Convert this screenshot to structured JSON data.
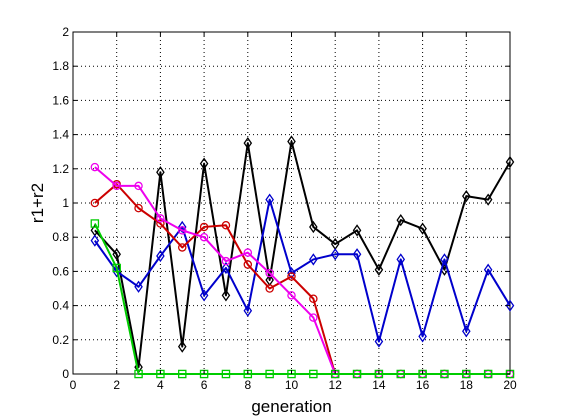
{
  "chart_data": {
    "type": "line",
    "title": "",
    "xlabel": "generation",
    "ylabel": "r1+r2",
    "xlim": [
      0,
      20
    ],
    "ylim": [
      0,
      2
    ],
    "xticks": [
      0,
      2,
      4,
      6,
      8,
      10,
      12,
      14,
      16,
      18,
      20
    ],
    "yticks": [
      0,
      0.2,
      0.4,
      0.6,
      0.8,
      1,
      1.2,
      1.4,
      1.6,
      1.8,
      2
    ],
    "ytick_labels": [
      "0",
      "0.2",
      "0.4",
      "0.6",
      "0.8",
      "1",
      "1.2",
      "1.4",
      "1.6",
      "1.8",
      "2"
    ],
    "grid": true,
    "series": [
      {
        "color": "#000000",
        "marker": "diamond",
        "x": [
          1,
          2,
          3,
          4,
          5,
          6,
          7,
          8,
          9,
          10,
          11,
          12,
          13,
          14,
          15,
          16,
          17,
          18,
          19,
          20
        ],
        "y": [
          0.84,
          0.7,
          0.04,
          1.18,
          0.16,
          1.23,
          0.46,
          1.35,
          0.55,
          1.36,
          0.86,
          0.76,
          0.84,
          0.61,
          0.9,
          0.85,
          0.61,
          1.04,
          1.02,
          1.24
        ]
      },
      {
        "color": "#0000cc",
        "marker": "diamond",
        "x": [
          1,
          2,
          3,
          4,
          5,
          6,
          7,
          8,
          9,
          10,
          11,
          12,
          13,
          14,
          15,
          16,
          17,
          18,
          19,
          20
        ],
        "y": [
          0.78,
          0.6,
          0.51,
          0.69,
          0.86,
          0.46,
          0.62,
          0.37,
          1.02,
          0.59,
          0.67,
          0.7,
          0.7,
          0.19,
          0.67,
          0.22,
          0.67,
          0.25,
          0.61,
          0.4
        ]
      },
      {
        "color": "#cc0000",
        "marker": "circle",
        "x": [
          1,
          2,
          3,
          4,
          5,
          6,
          7,
          8,
          9,
          10,
          11,
          12,
          13,
          14,
          15,
          16,
          17,
          18,
          19,
          20
        ],
        "y": [
          1.0,
          1.11,
          0.97,
          0.88,
          0.74,
          0.86,
          0.87,
          0.64,
          0.5,
          0.57,
          0.44,
          0.0,
          0.0,
          0.0,
          0.0,
          0.0,
          0.0,
          0.0,
          0.0,
          0.0
        ]
      },
      {
        "color": "#ee00ee",
        "marker": "circle",
        "x": [
          1,
          2,
          3,
          4,
          5,
          6,
          7,
          8,
          9,
          10,
          11,
          12,
          13,
          14,
          15,
          16,
          17,
          18,
          19,
          20
        ],
        "y": [
          1.21,
          1.1,
          1.1,
          0.91,
          0.84,
          0.8,
          0.66,
          0.71,
          0.59,
          0.46,
          0.33,
          0.0,
          0.0,
          0.0,
          0.0,
          0.0,
          0.0,
          0.0,
          0.0,
          0.0
        ]
      },
      {
        "color": "#00cc00",
        "marker": "square",
        "x": [
          1,
          2,
          3,
          4,
          5,
          6,
          7,
          8,
          9,
          10,
          11,
          12,
          13,
          14,
          15,
          16,
          17,
          18,
          19,
          20
        ],
        "y": [
          0.88,
          0.62,
          0.0,
          0.0,
          0.0,
          0.0,
          0.0,
          0.0,
          0.0,
          0.0,
          0.0,
          0.0,
          0.0,
          0.0,
          0.0,
          0.0,
          0.0,
          0.0,
          0.0,
          0.0
        ]
      }
    ]
  }
}
